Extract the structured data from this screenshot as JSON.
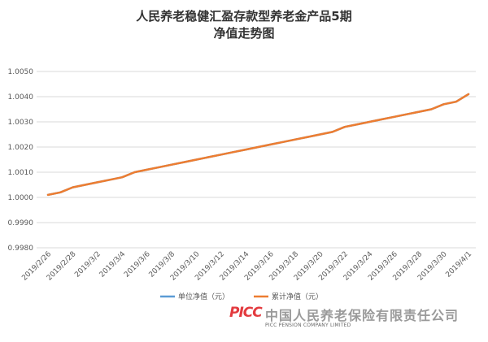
{
  "chart_data": {
    "type": "line",
    "title_line1": "人民养老稳健汇盈存款型养老金产品5期",
    "title_line2": "净值走势图",
    "xlabel": "",
    "ylabel": "",
    "ylim": [
      0.998,
      1.005
    ],
    "y_ticks": [
      "0.9980",
      "0.9990",
      "1.0000",
      "1.0010",
      "1.0020",
      "1.0030",
      "1.0040",
      "1.0050"
    ],
    "x_tick_labels": [
      "2019/2/26",
      "2019/2/28",
      "2019/3/2",
      "2019/3/4",
      "2019/3/6",
      "2019/3/8",
      "2019/3/10",
      "2019/3/12",
      "2019/3/14",
      "2019/3/16",
      "2019/3/18",
      "2019/3/20",
      "2019/3/22",
      "2019/3/24",
      "2019/3/26",
      "2019/3/28",
      "2019/3/30",
      "2019/4/1"
    ],
    "x": [
      "2019/2/26",
      "2019/2/27",
      "2019/2/28",
      "2019/3/1",
      "2019/3/2",
      "2019/3/3",
      "2019/3/4",
      "2019/3/5",
      "2019/3/6",
      "2019/3/7",
      "2019/3/8",
      "2019/3/9",
      "2019/3/10",
      "2019/3/11",
      "2019/3/12",
      "2019/3/13",
      "2019/3/14",
      "2019/3/15",
      "2019/3/16",
      "2019/3/17",
      "2019/3/18",
      "2019/3/19",
      "2019/3/20",
      "2019/3/21",
      "2019/3/22",
      "2019/3/23",
      "2019/3/24",
      "2019/3/25",
      "2019/3/26",
      "2019/3/27",
      "2019/3/28",
      "2019/3/29",
      "2019/3/30",
      "2019/3/31",
      "2019/4/1"
    ],
    "series": [
      {
        "name": "单位净值（元）",
        "color": "#5b9bd5",
        "values": [
          1.0001,
          1.0002,
          1.0004,
          1.0005,
          1.0006,
          1.0007,
          1.0008,
          1.001,
          1.0011,
          1.0012,
          1.0013,
          1.0014,
          1.0015,
          1.0016,
          1.0017,
          1.0018,
          1.0019,
          1.002,
          1.0021,
          1.0022,
          1.0023,
          1.0024,
          1.0025,
          1.0026,
          1.0028,
          1.0029,
          1.003,
          1.0031,
          1.0032,
          1.0033,
          1.0034,
          1.0035,
          1.0037,
          1.0038,
          1.0041
        ]
      },
      {
        "name": "累计净值（元）",
        "color": "#ed7d31",
        "values": [
          1.0001,
          1.0002,
          1.0004,
          1.0005,
          1.0006,
          1.0007,
          1.0008,
          1.001,
          1.0011,
          1.0012,
          1.0013,
          1.0014,
          1.0015,
          1.0016,
          1.0017,
          1.0018,
          1.0019,
          1.002,
          1.0021,
          1.0022,
          1.0023,
          1.0024,
          1.0025,
          1.0026,
          1.0028,
          1.0029,
          1.003,
          1.0031,
          1.0032,
          1.0033,
          1.0034,
          1.0035,
          1.0037,
          1.0038,
          1.0041
        ]
      }
    ],
    "grid": true,
    "legend_position": "bottom"
  },
  "footer": {
    "logo_text": "PICC",
    "company_name_cn": "中国人民养老保险有限责任公司",
    "company_name_en": "PICC PENSION COMPANY LIMITED"
  }
}
